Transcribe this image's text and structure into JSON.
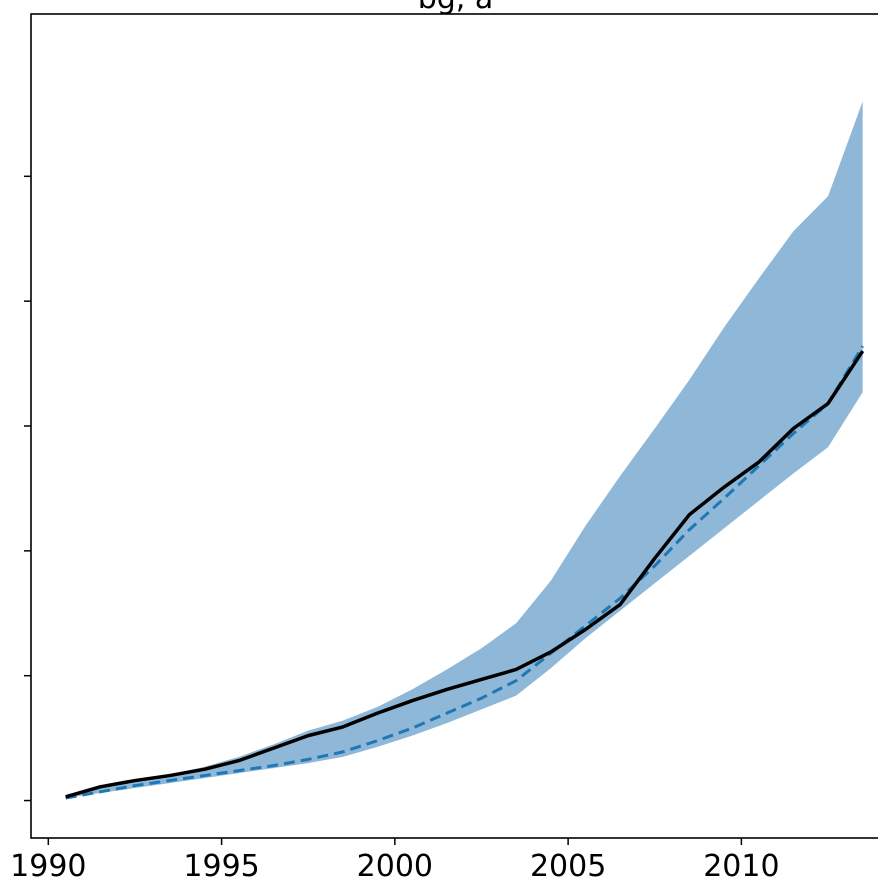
{
  "chart_data": {
    "type": "line",
    "title": "bg, a",
    "xlabel": "",
    "ylabel": "",
    "xlim": [
      1989.5,
      2014.0
    ],
    "ylim": [
      -0.3,
      6.3
    ],
    "x_ticks": [
      1990,
      1995,
      2000,
      2005,
      2010
    ],
    "x_tick_labels": [
      "1990",
      "1995",
      "2000",
      "2005",
      "2010"
    ],
    "y_ticks": [
      0,
      1,
      2,
      3,
      4,
      5
    ],
    "y_tick_labels": [
      "",
      "",
      "",
      "",
      "",
      ""
    ],
    "grid": false,
    "series": [
      {
        "style": "solid",
        "color": "#000000",
        "x": [
          1990.5,
          1991.5,
          1992.5,
          1993.5,
          1994.5,
          1995.5,
          1996.5,
          1997.5,
          1998.5,
          1999.5,
          2000.5,
          2001.5,
          2002.5,
          2003.5,
          2004.5,
          2005.5,
          2006.5,
          2007.5,
          2008.5,
          2009.5,
          2010.5,
          2011.5,
          2012.5,
          2013.5
        ],
        "values": [
          0.03,
          0.11,
          0.16,
          0.2,
          0.25,
          0.32,
          0.42,
          0.52,
          0.59,
          0.7,
          0.8,
          0.89,
          0.97,
          1.05,
          1.19,
          1.37,
          1.57,
          1.94,
          2.29,
          2.51,
          2.71,
          2.98,
          3.18,
          3.6
        ]
      },
      {
        "style": "dashed",
        "color": "#1f77b4",
        "x": [
          1990.5,
          1991.5,
          1992.5,
          1993.5,
          1994.5,
          1995.5,
          1996.5,
          1997.5,
          1998.5,
          1999.5,
          2000.5,
          2001.5,
          2002.5,
          2003.5,
          2004.5,
          2005.5,
          2006.5,
          2007.5,
          2008.5,
          2009.5,
          2010.5,
          2011.5,
          2012.5,
          2013.5
        ],
        "values": [
          0.02,
          0.07,
          0.12,
          0.16,
          0.2,
          0.24,
          0.28,
          0.33,
          0.39,
          0.48,
          0.58,
          0.7,
          0.82,
          0.96,
          1.18,
          1.4,
          1.62,
          1.88,
          2.17,
          2.42,
          2.68,
          2.94,
          3.18,
          3.64
        ]
      }
    ],
    "band": {
      "color": "#8fb8d8",
      "x": [
        1990.5,
        1991.5,
        1992.5,
        1993.5,
        1994.5,
        1995.5,
        1996.5,
        1997.5,
        1998.5,
        1999.5,
        2000.5,
        2001.5,
        2002.5,
        2003.5,
        2004.5,
        2005.5,
        2006.5,
        2007.5,
        2008.5,
        2009.5,
        2010.5,
        2011.5,
        2012.5,
        2013.5
      ],
      "upper": [
        0.04,
        0.11,
        0.16,
        0.21,
        0.27,
        0.35,
        0.45,
        0.56,
        0.64,
        0.75,
        0.89,
        1.05,
        1.22,
        1.42,
        1.76,
        2.2,
        2.6,
        2.98,
        3.37,
        3.79,
        4.18,
        4.56,
        4.84,
        5.6
      ],
      "lower": [
        0.02,
        0.06,
        0.1,
        0.14,
        0.18,
        0.22,
        0.26,
        0.3,
        0.35,
        0.43,
        0.52,
        0.62,
        0.73,
        0.84,
        1.06,
        1.3,
        1.52,
        1.74,
        1.96,
        2.18,
        2.4,
        2.62,
        2.83,
        3.27
      ]
    }
  }
}
